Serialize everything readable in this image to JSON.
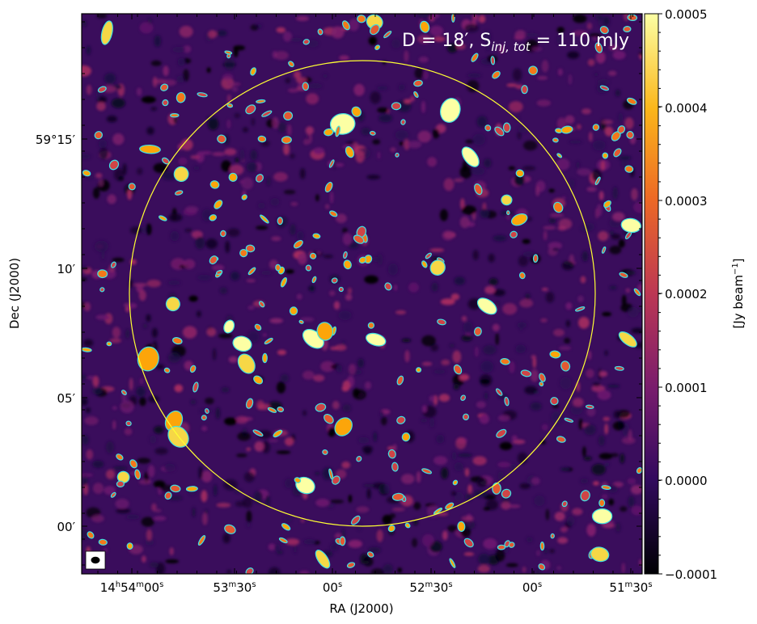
{
  "image": {
    "type": "radio-continuum-image",
    "colormap": "inferno",
    "contour_color": "#40e0e0",
    "circle_color": "#ffff33",
    "annotation_main": "D = 18′, S",
    "annotation_sub": "inj, tot",
    "annotation_tail": " = 110 mJy"
  },
  "axes": {
    "xlabel": "RA (J2000)",
    "ylabel": "Dec (J2000)",
    "x_ticks": [
      {
        "h": "14",
        "hs": "h",
        "m": "54",
        "ms": "m",
        "s": "00",
        "ss": "s"
      },
      {
        "m": "53",
        "ms": "m",
        "s": "30",
        "ss": "s"
      },
      {
        "s": "00",
        "ss": "s"
      },
      {
        "m": "52",
        "ms": "m",
        "s": "30",
        "ss": "s"
      },
      {
        "s": "00",
        "ss": "s"
      },
      {
        "m": "51",
        "ms": "m",
        "s": "30",
        "ss": "s"
      }
    ],
    "y_ticks": [
      "59°15′",
      "10′",
      "05′",
      "00′"
    ]
  },
  "colorbar": {
    "label_main": "[Jy beam",
    "label_sup": "−1",
    "label_tail": "]",
    "range": [
      -0.0001,
      0.0005
    ],
    "ticks": [
      "0.0005",
      "0.0004",
      "0.0003",
      "0.0002",
      "0.0001",
      "0.0000",
      "−0.0001"
    ],
    "colors": [
      "#000004",
      "#320a5e",
      "#781c6d",
      "#bc3754",
      "#ed6925",
      "#fbb61a",
      "#fcffa4"
    ]
  }
}
